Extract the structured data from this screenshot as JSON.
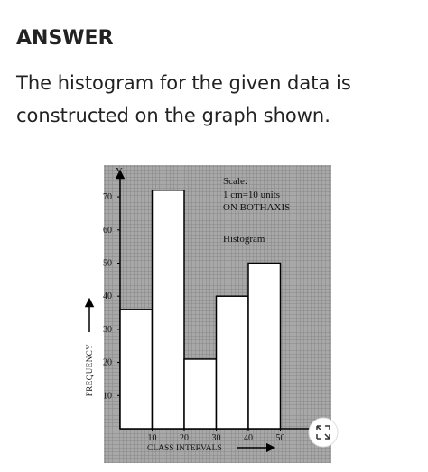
{
  "header": {
    "title": "ANSWER"
  },
  "answer_text": [
    "The histogram for the given data is",
    "constructed on the graph shown."
  ],
  "chart_data": {
    "type": "histogram",
    "bins": [
      0,
      10,
      20,
      30,
      40,
      50
    ],
    "values": [
      36,
      72,
      21,
      40,
      50
    ],
    "xlim": [
      0,
      65
    ],
    "xticks": [
      10,
      20,
      30,
      40,
      50
    ],
    "ylim": [
      0,
      80
    ],
    "yticks": [
      10,
      20,
      30,
      40,
      50,
      60,
      70
    ],
    "ylabel_symbol": "Y",
    "ylabel": "FREQUENCY",
    "xlabel": "CLASS INTERVALS",
    "annotations": [
      "Scale:",
      "1 cm=10 units",
      "ON BOTHAXIS",
      "Histogram"
    ],
    "color": "#ffffff"
  }
}
